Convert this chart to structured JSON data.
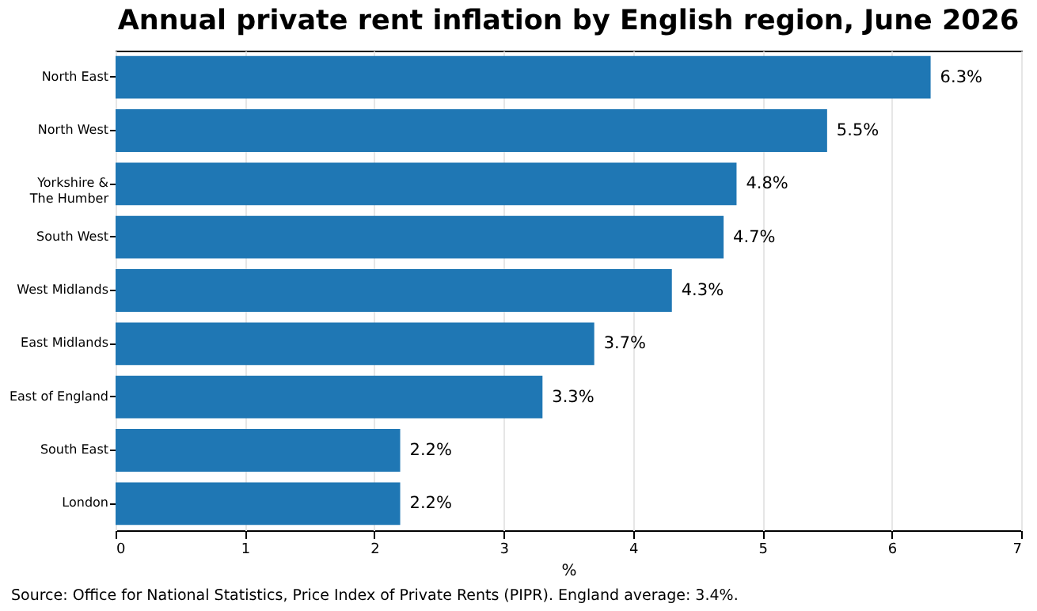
{
  "chart_data": {
    "type": "bar",
    "orientation": "horizontal",
    "title": "Annual private rent inflation by English region, June 2026",
    "xlabel": "%",
    "categories": [
      "North East",
      "North West",
      "Yorkshire &\nThe Humber",
      "South West",
      "West Midlands",
      "East Midlands",
      "East of England",
      "South East",
      "London"
    ],
    "values": [
      6.3,
      5.5,
      4.8,
      4.7,
      4.3,
      3.7,
      3.3,
      2.2,
      2.2
    ],
    "value_labels": [
      "6.3%",
      "5.5%",
      "4.8%",
      "4.7%",
      "4.3%",
      "3.7%",
      "3.3%",
      "2.2%",
      "2.2%"
    ],
    "color": "#1f77b4",
    "xlim": [
      0,
      7
    ],
    "xticks": [
      0,
      1,
      2,
      3,
      4,
      5,
      6,
      7
    ],
    "grid": "x",
    "annotations": [
      "Source: Office for National Statistics, Price Index of Private Rents (PIPR). England average: 3.4%."
    ]
  }
}
